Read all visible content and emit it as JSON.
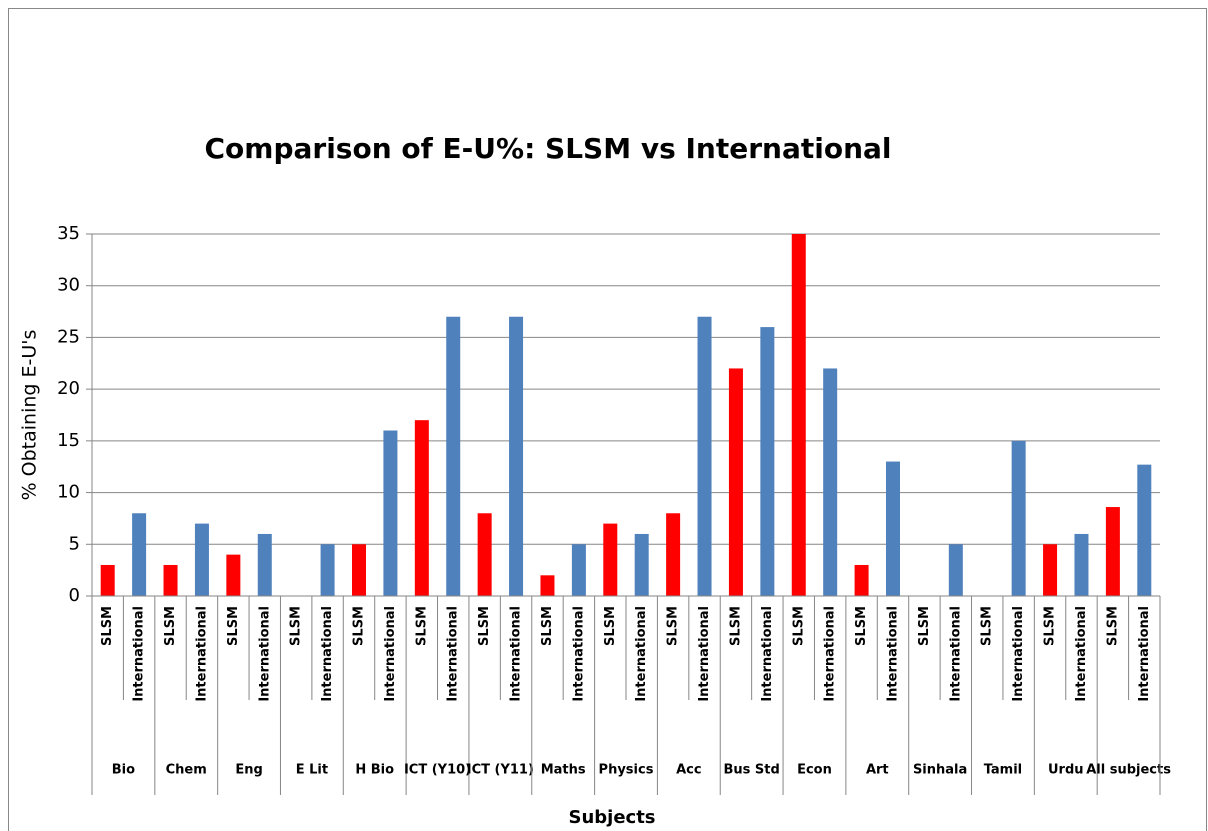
{
  "chart_data": {
    "type": "bar",
    "title": "Comparison of E-U%: SLSM vs International",
    "xlabel": "Subjects",
    "ylabel": "% Obtaining E-U's",
    "categories": [
      "Bio",
      "Chem",
      "Eng",
      "E Lit",
      "H Bio",
      "ICT (Y10)",
      "ICT (Y11)",
      "Maths",
      "Physics",
      "Acc",
      "Bus Std",
      "Econ",
      "Art",
      "Sinhala",
      "Tamil",
      "Urdu",
      "All subjects"
    ],
    "series": [
      {
        "name": "SLSM",
        "color": "#ff0000",
        "values": [
          3,
          3,
          4,
          null,
          5,
          17,
          8,
          2,
          7,
          8,
          22,
          35,
          3,
          null,
          null,
          5,
          8.6
        ]
      },
      {
        "name": "International",
        "color": "#4f81bd",
        "values": [
          8,
          7,
          6,
          5,
          16,
          27,
          27,
          5,
          6,
          27,
          26,
          22,
          13,
          5,
          15,
          6,
          12.7
        ]
      }
    ],
    "ylim": [
      0,
      35
    ],
    "yticks": [
      0,
      5,
      10,
      15,
      20,
      25,
      30,
      35
    ],
    "grid": true
  }
}
